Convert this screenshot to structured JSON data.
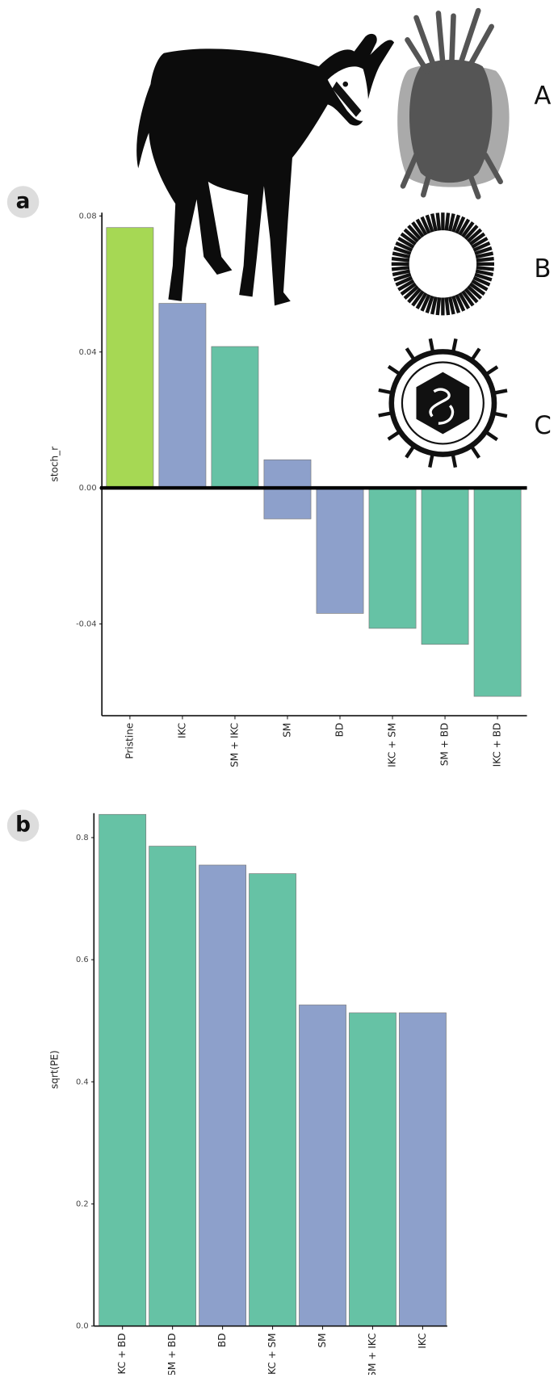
{
  "chart_data": [
    {
      "type": "bar",
      "panel": "a",
      "y_label": "stoch_r",
      "categories": [
        "Pristine",
        "IKC",
        "SM + IKC",
        "SM",
        "BD",
        "IKC + SM",
        "SM + BD",
        "IKC + BD"
      ],
      "values": [
        0.0766,
        0.0543,
        0.0416,
        0.0083,
        -0.0369,
        -0.0413,
        -0.046,
        -0.0613
      ],
      "lows": [
        0,
        0,
        0,
        -0.0091,
        0,
        0,
        0,
        0
      ],
      "colors": [
        "#a6d854",
        "#8da0cb",
        "#66c2a5",
        "#8da0cb",
        "#8da0cb",
        "#66c2a5",
        "#66c2a5",
        "#66c2a5"
      ],
      "ylim": [
        -0.067,
        0.081
      ],
      "yticks": [
        -0.04,
        {
          "value": 0,
          "label": "0.00"
        },
        0.04,
        0.08
      ],
      "icons": [
        "A",
        "B",
        "C"
      ]
    },
    {
      "type": "bar",
      "panel": "b",
      "y_label": "sqrt(PE)",
      "categories": [
        "IKC + BD",
        "SM + BD",
        "BD",
        "IKC + SM",
        "SM",
        "SM + IKC",
        "IKC"
      ],
      "values": [
        0.838,
        0.786,
        0.755,
        0.741,
        0.526,
        0.513,
        0.513
      ],
      "colors": [
        "#66c2a5",
        "#66c2a5",
        "#8da0cb",
        "#66c2a5",
        "#8da0cb",
        "#66c2a5",
        "#8da0cb"
      ],
      "ylim": [
        0,
        0.84
      ],
      "yticks": [
        {
          "value": 0,
          "label": "0.0"
        },
        0.2,
        0.4,
        0.6,
        0.8
      ]
    }
  ]
}
